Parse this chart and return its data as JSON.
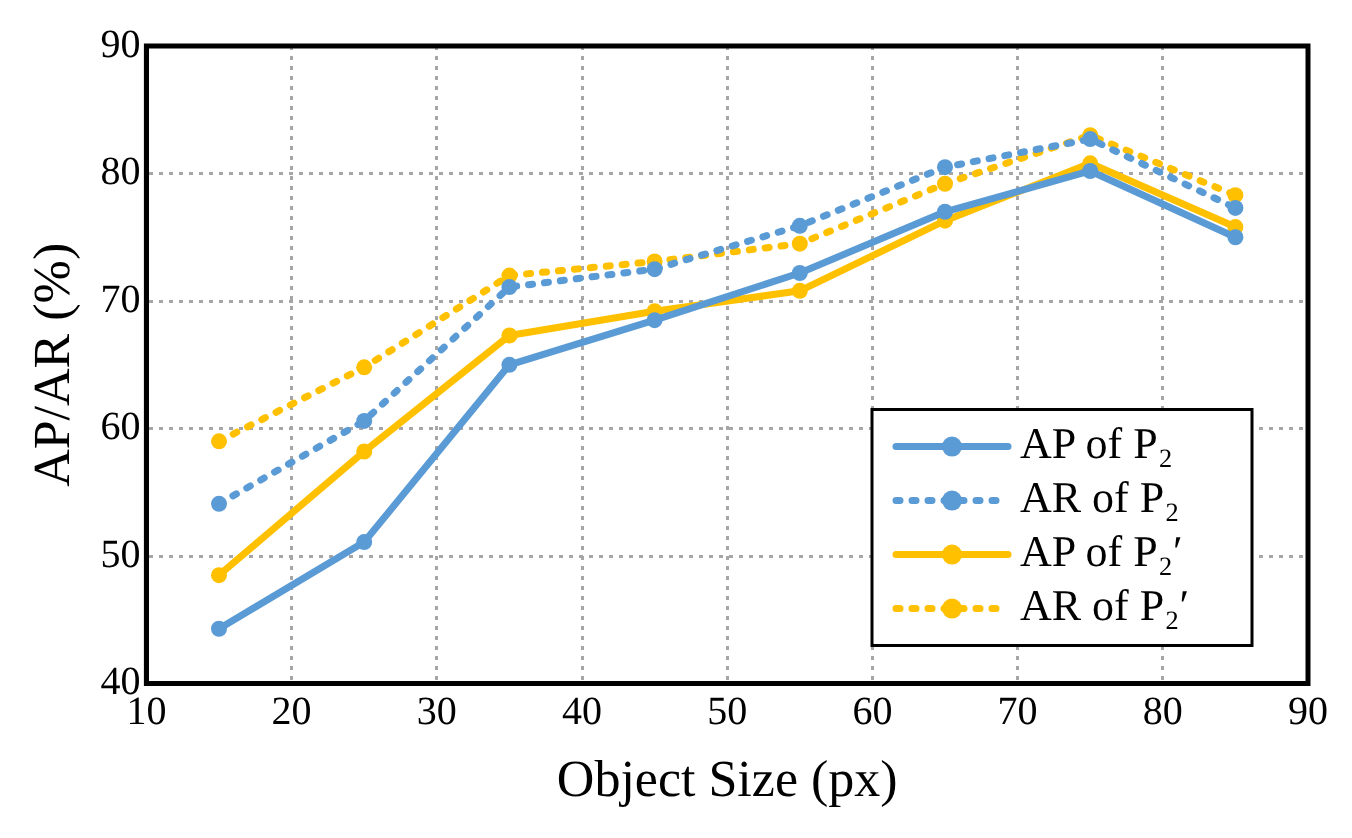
{
  "chart_data": {
    "type": "line",
    "xlabel": "Object Size (px)",
    "ylabel": "AP/AR (%)",
    "x": [
      15,
      25,
      35,
      45,
      55,
      65,
      75,
      85
    ],
    "xlim": [
      10,
      90
    ],
    "xticks": [
      10,
      20,
      30,
      40,
      50,
      60,
      70,
      80,
      90
    ],
    "ylim": [
      40,
      90
    ],
    "yticks": [
      40,
      50,
      60,
      70,
      80,
      90
    ],
    "grid": true,
    "legend": "bottom right",
    "marker": "circle",
    "series": [
      {
        "name": "AP of P₂",
        "color": "#5b9bd5",
        "line_style": "solid",
        "values": [
          44.3,
          51.1,
          65,
          68.5,
          72.2,
          77,
          80.2,
          75
        ]
      },
      {
        "name": "AR of P₂",
        "color": "#5b9bd5",
        "line_style": "dotted",
        "values": [
          54.1,
          60.6,
          71.1,
          72.5,
          75.9,
          80.5,
          82.7,
          77.3
        ]
      },
      {
        "name": "AP of P₂′",
        "color": "#ffc000",
        "line_style": "solid",
        "values": [
          48.5,
          58.2,
          67.3,
          69.2,
          70.8,
          76.3,
          80.8,
          75.8
        ]
      },
      {
        "name": "AR of P₂′",
        "color": "#ffc000",
        "line_style": "dotted",
        "values": [
          59,
          64.8,
          72,
          73.1,
          74.5,
          79.2,
          83,
          78.3
        ]
      }
    ]
  }
}
